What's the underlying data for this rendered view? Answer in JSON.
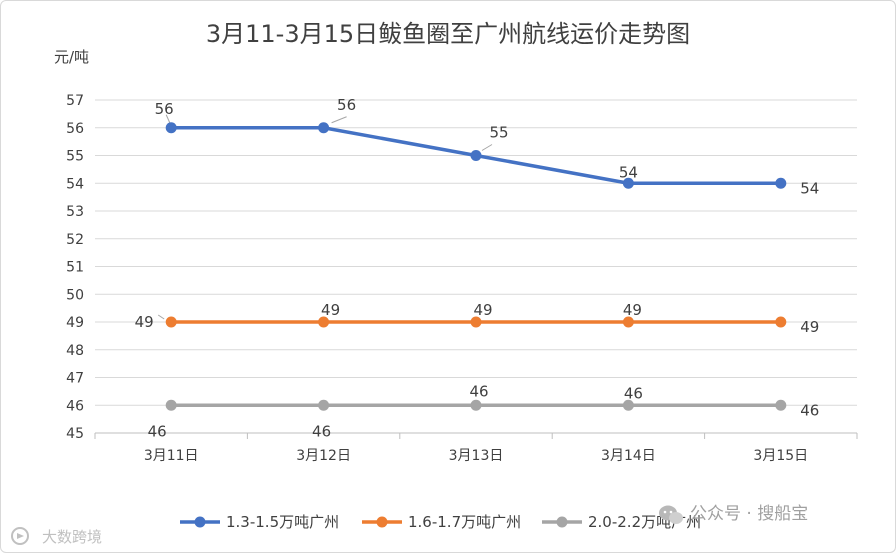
{
  "chart_data": {
    "type": "line",
    "title": "3月11-3月15日鲅鱼圈至广州航线运价走势图",
    "ylabel": "元/吨",
    "xlabel": "",
    "categories": [
      "3月11日",
      "3月12日",
      "3月13日",
      "3月14日",
      "3月15日"
    ],
    "ylim": [
      45,
      57
    ],
    "yticks": [
      45,
      46,
      47,
      48,
      49,
      50,
      51,
      52,
      53,
      54,
      55,
      56,
      57
    ],
    "grid": true,
    "legend_position": "bottom",
    "series": [
      {
        "name": "1.3-1.5万吨广州",
        "color": "#4472c4",
        "values": [
          56,
          56,
          55,
          54,
          54
        ],
        "labels": [
          "56",
          "56",
          "55",
          "54",
          "54"
        ]
      },
      {
        "name": "1.6-1.7万吨广州",
        "color": "#ed7d31",
        "values": [
          49,
          49,
          49,
          49,
          49
        ],
        "labels": [
          "49",
          "49",
          "49",
          "49",
          "49"
        ]
      },
      {
        "name": "2.0-2.2万吨广州",
        "color": "#a5a5a5",
        "values": [
          46,
          46,
          46,
          46,
          46
        ],
        "labels": [
          "46",
          "46",
          "46",
          "46",
          "46"
        ]
      }
    ]
  },
  "watermark": {
    "right_text": "公众号 · 搜船宝",
    "left_text": "大数跨境",
    "right_icon": "wechat-icon",
    "left_icon": "brand-logo-icon"
  }
}
